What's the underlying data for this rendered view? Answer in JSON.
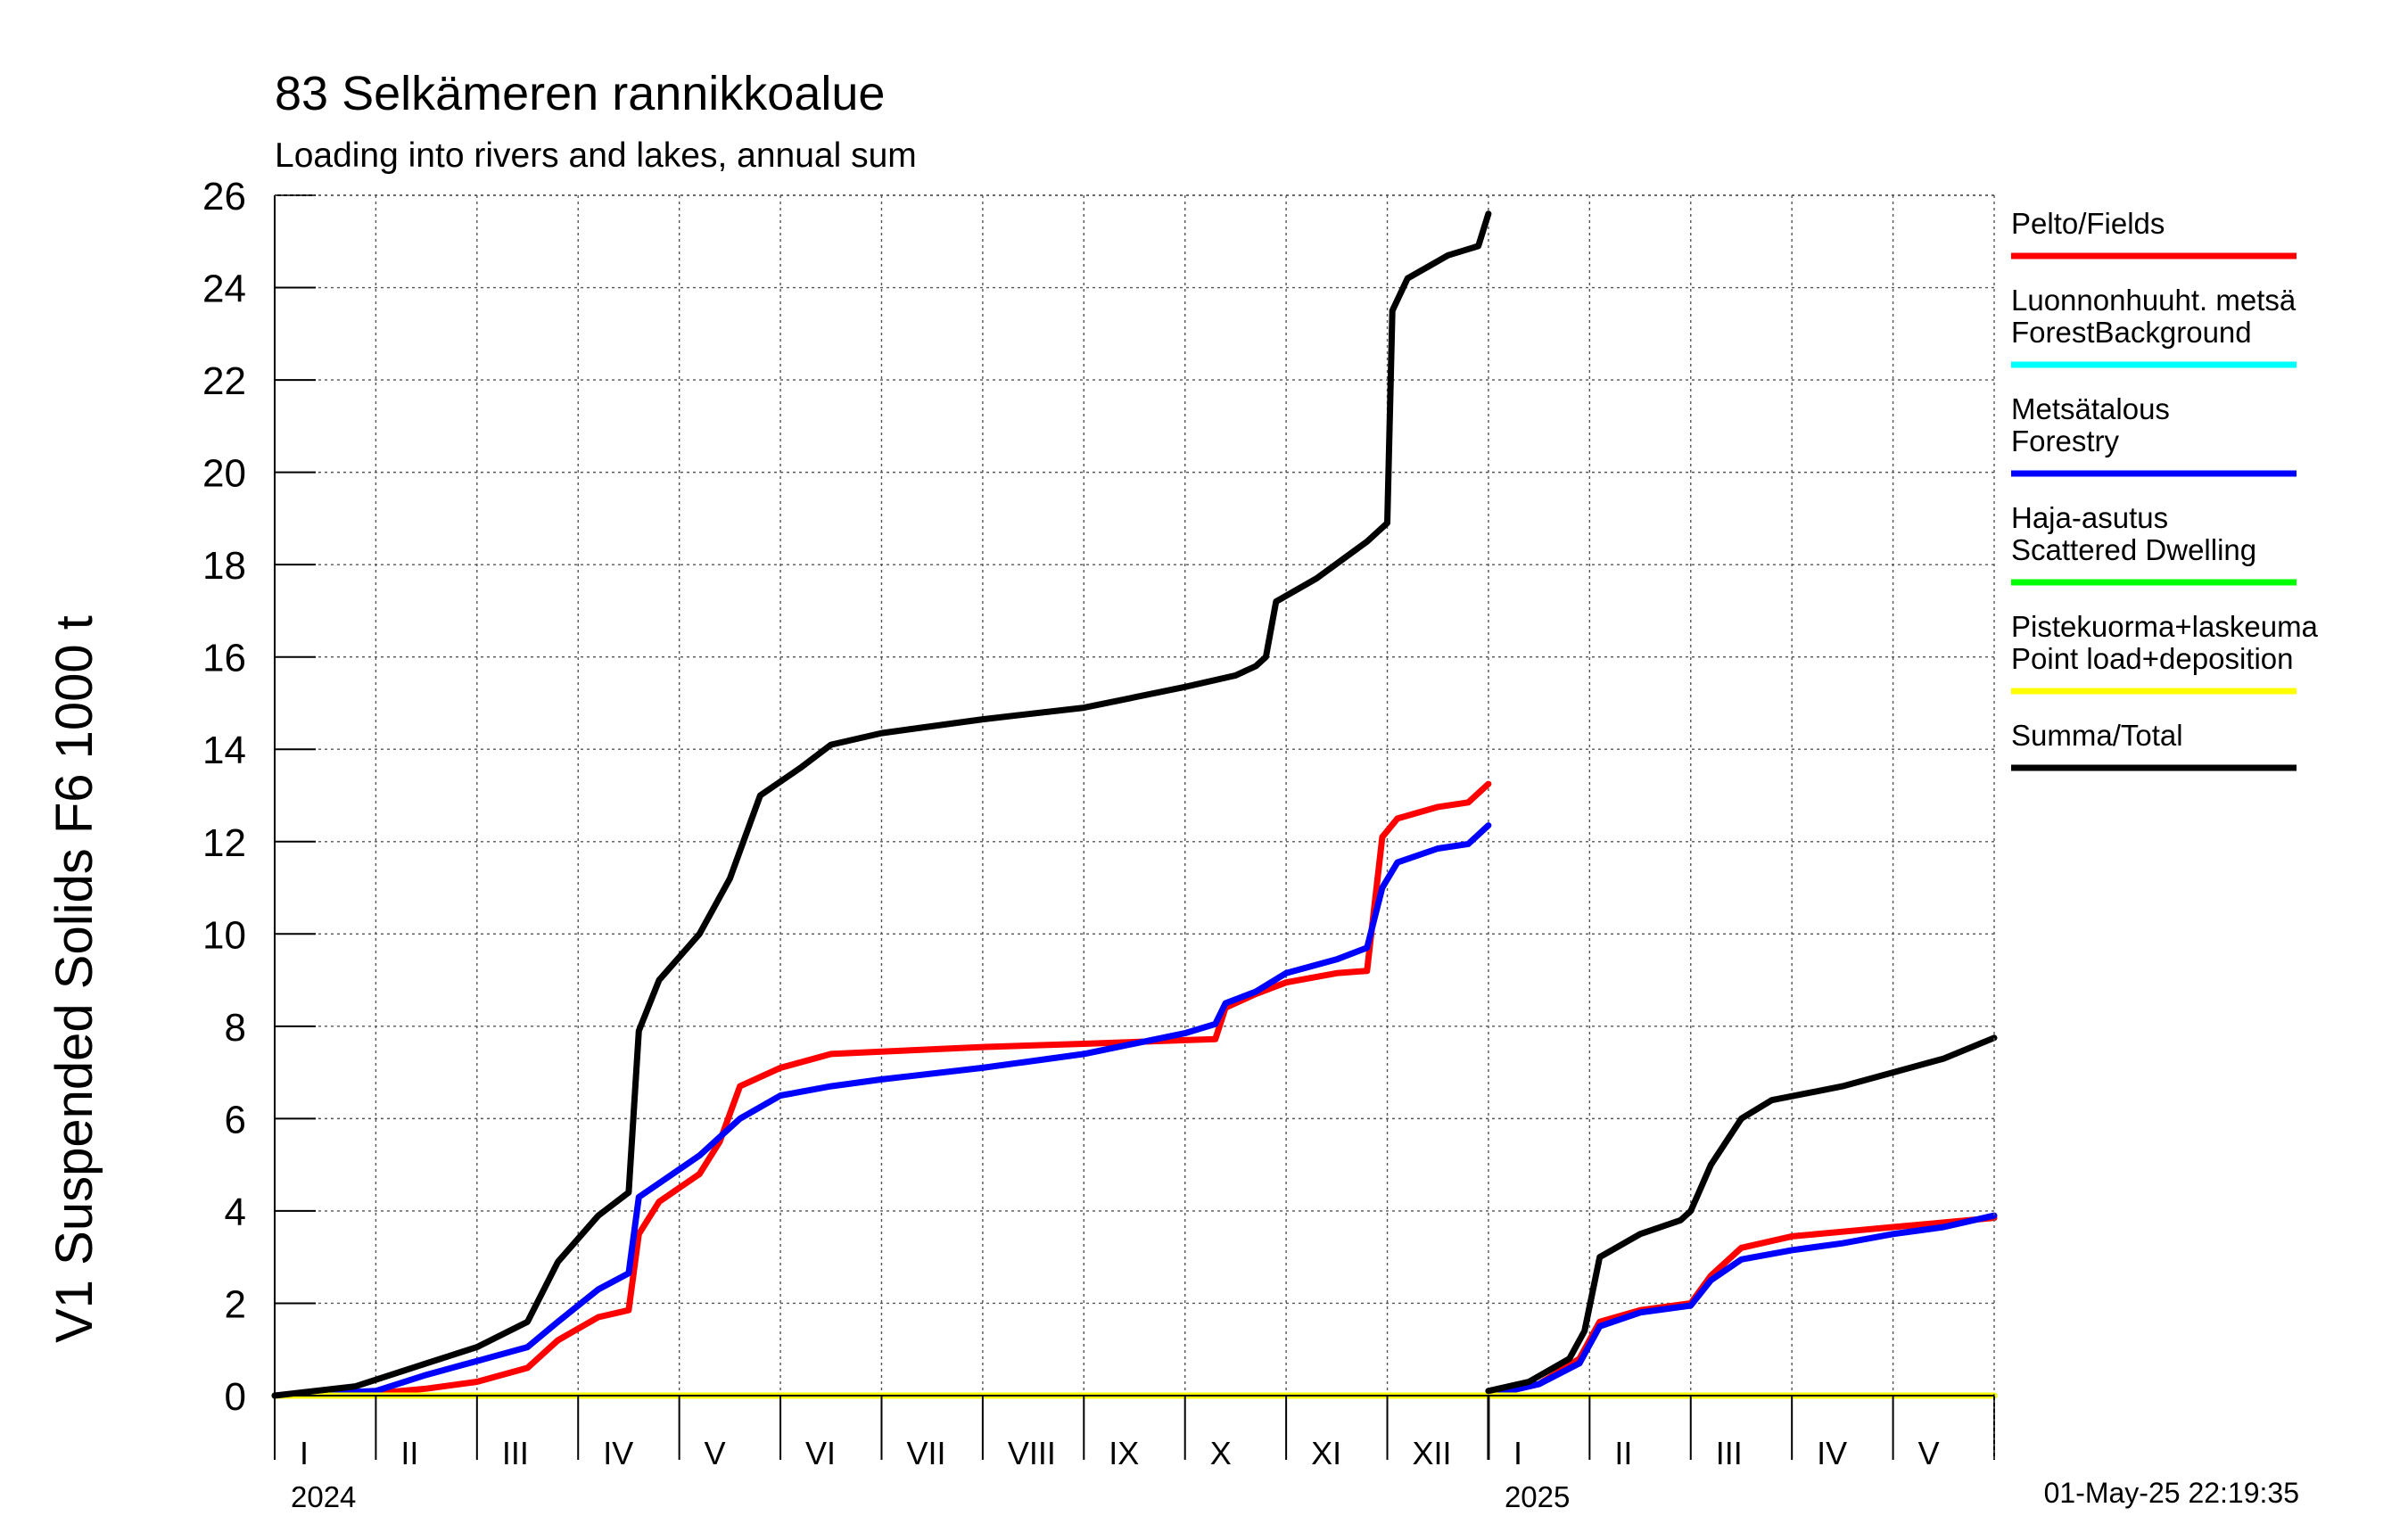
{
  "chart_data": {
    "type": "line",
    "title": "83 Selkämeren rannikkoalue",
    "subtitle": "Loading into rivers and lakes, annual sum",
    "ylabel": "V1 Suspended Solids F6 1000 t",
    "ylim": [
      0,
      26
    ],
    "yticks": [
      0,
      2,
      4,
      6,
      8,
      10,
      12,
      14,
      16,
      18,
      20,
      22,
      24,
      26
    ],
    "month_ticks": [
      {
        "label": "I",
        "year": "2024"
      },
      {
        "label": "II"
      },
      {
        "label": "III"
      },
      {
        "label": "IV"
      },
      {
        "label": "V"
      },
      {
        "label": "VI"
      },
      {
        "label": "VII"
      },
      {
        "label": "VIII"
      },
      {
        "label": "IX"
      },
      {
        "label": "X"
      },
      {
        "label": "XI"
      },
      {
        "label": "XII"
      },
      {
        "label": "I",
        "year": "2025"
      },
      {
        "label": "II"
      },
      {
        "label": "III"
      },
      {
        "label": "IV"
      },
      {
        "label": "V"
      }
    ],
    "grid": true,
    "legend_position": "right",
    "timestamp": "01-May-25 22:19:35",
    "series": [
      {
        "name": "Pelto/Fields",
        "color": "#ff0000",
        "segments": [
          [
            [
              0,
              0
            ],
            [
              1,
              0.05
            ],
            [
              1.5,
              0.15
            ],
            [
              2,
              0.3
            ],
            [
              2.5,
              0.6
            ],
            [
              2.8,
              1.2
            ],
            [
              3.2,
              1.7
            ],
            [
              3.5,
              1.85
            ],
            [
              3.6,
              3.5
            ],
            [
              3.8,
              4.2
            ],
            [
              4.2,
              4.8
            ],
            [
              4.4,
              5.5
            ],
            [
              4.6,
              6.7
            ],
            [
              5,
              7.1
            ],
            [
              5.5,
              7.4
            ],
            [
              6,
              7.45
            ],
            [
              7,
              7.55
            ],
            [
              8,
              7.62
            ],
            [
              9,
              7.7
            ],
            [
              9.3,
              7.72
            ],
            [
              9.4,
              8.4
            ],
            [
              9.7,
              8.7
            ],
            [
              10,
              8.95
            ],
            [
              10.5,
              9.15
            ],
            [
              10.8,
              9.2
            ],
            [
              10.95,
              12.1
            ],
            [
              11.1,
              12.5
            ],
            [
              11.5,
              12.75
            ],
            [
              11.8,
              12.85
            ],
            [
              12,
              13.25
            ]
          ],
          [
            [
              12,
              0
            ],
            [
              12.5,
              0.25
            ],
            [
              12.9,
              0.8
            ],
            [
              13.1,
              1.6
            ],
            [
              13.5,
              1.85
            ],
            [
              14,
              2
            ],
            [
              14.2,
              2.6
            ],
            [
              14.5,
              3.2
            ],
            [
              15,
              3.45
            ],
            [
              15.5,
              3.55
            ],
            [
              16,
              3.65
            ],
            [
              16.5,
              3.75
            ],
            [
              17,
              3.85
            ]
          ]
        ]
      },
      {
        "name": "Luonnonhuuht. metsä ForestBackground",
        "color": "#00ffff",
        "segments": [
          [
            [
              0,
              0
            ],
            [
              12,
              0
            ]
          ],
          [
            [
              12,
              0
            ],
            [
              17,
              0
            ]
          ]
        ]
      },
      {
        "name": "Metsätalous Forestry",
        "color": "#0000ff",
        "segments": [
          [
            [
              0,
              0
            ],
            [
              1,
              0.1
            ],
            [
              1.5,
              0.45
            ],
            [
              2,
              0.75
            ],
            [
              2.5,
              1.05
            ],
            [
              2.8,
              1.6
            ],
            [
              3.2,
              2.3
            ],
            [
              3.5,
              2.65
            ],
            [
              3.6,
              4.3
            ],
            [
              3.8,
              4.6
            ],
            [
              4.2,
              5.2
            ],
            [
              4.4,
              5.6
            ],
            [
              4.6,
              6.0
            ],
            [
              5,
              6.5
            ],
            [
              5.5,
              6.7
            ],
            [
              6,
              6.85
            ],
            [
              7,
              7.1
            ],
            [
              8,
              7.4
            ],
            [
              9,
              7.85
            ],
            [
              9.3,
              8.05
            ],
            [
              9.4,
              8.5
            ],
            [
              9.7,
              8.75
            ],
            [
              10,
              9.15
            ],
            [
              10.5,
              9.45
            ],
            [
              10.8,
              9.7
            ],
            [
              10.95,
              11.0
            ],
            [
              11.1,
              11.55
            ],
            [
              11.5,
              11.85
            ],
            [
              11.8,
              11.95
            ],
            [
              12,
              12.35
            ]
          ],
          [
            [
              12,
              0
            ],
            [
              12.5,
              0.25
            ],
            [
              12.9,
              0.7
            ],
            [
              13.1,
              1.5
            ],
            [
              13.5,
              1.8
            ],
            [
              14,
              1.95
            ],
            [
              14.2,
              2.5
            ],
            [
              14.5,
              2.95
            ],
            [
              15,
              3.15
            ],
            [
              15.5,
              3.3
            ],
            [
              16,
              3.5
            ],
            [
              16.5,
              3.65
            ],
            [
              17,
              3.9
            ]
          ]
        ]
      },
      {
        "name": "Haja-asutus Scattered Dwelling",
        "color": "#00ff00",
        "segments": [
          [
            [
              0,
              0
            ],
            [
              12,
              0
            ]
          ],
          [
            [
              12,
              0
            ],
            [
              17,
              0
            ]
          ]
        ]
      },
      {
        "name": "Pistekuorma+laskeuma Point load+deposition",
        "color": "#ffff00",
        "segments": [
          [
            [
              0,
              0
            ],
            [
              12,
              0
            ]
          ],
          [
            [
              12,
              0
            ],
            [
              17,
              0
            ]
          ]
        ]
      },
      {
        "name": "Summa/Total",
        "color": "#000000",
        "segments": [
          [
            [
              0,
              0
            ],
            [
              0.8,
              0.2
            ],
            [
              1.5,
              0.7
            ],
            [
              2,
              1.05
            ],
            [
              2.5,
              1.6
            ],
            [
              2.8,
              2.9
            ],
            [
              3.2,
              3.9
            ],
            [
              3.5,
              4.4
            ],
            [
              3.6,
              7.9
            ],
            [
              3.8,
              9.0
            ],
            [
              4.2,
              10.0
            ],
            [
              4.5,
              11.2
            ],
            [
              4.8,
              13.0
            ],
            [
              5.2,
              13.6
            ],
            [
              5.5,
              14.1
            ],
            [
              6,
              14.35
            ],
            [
              7,
              14.65
            ],
            [
              8,
              14.9
            ],
            [
              9,
              15.35
            ],
            [
              9.5,
              15.6
            ],
            [
              9.7,
              15.8
            ],
            [
              9.8,
              16.0
            ],
            [
              9.9,
              17.2
            ],
            [
              10.3,
              17.7
            ],
            [
              10.8,
              18.5
            ],
            [
              11,
              18.9
            ],
            [
              11.05,
              23.5
            ],
            [
              11.2,
              24.2
            ],
            [
              11.6,
              24.7
            ],
            [
              11.9,
              24.9
            ],
            [
              12,
              25.6
            ]
          ],
          [
            [
              12,
              0.1
            ],
            [
              12.4,
              0.3
            ],
            [
              12.8,
              0.8
            ],
            [
              12.95,
              1.4
            ],
            [
              13.1,
              3.0
            ],
            [
              13.5,
              3.5
            ],
            [
              13.9,
              3.8
            ],
            [
              14,
              4.0
            ],
            [
              14.2,
              5.0
            ],
            [
              14.5,
              6.0
            ],
            [
              14.8,
              6.4
            ],
            [
              15.5,
              6.7
            ],
            [
              16,
              7.0
            ],
            [
              16.5,
              7.3
            ],
            [
              17,
              7.75
            ]
          ]
        ]
      }
    ]
  }
}
